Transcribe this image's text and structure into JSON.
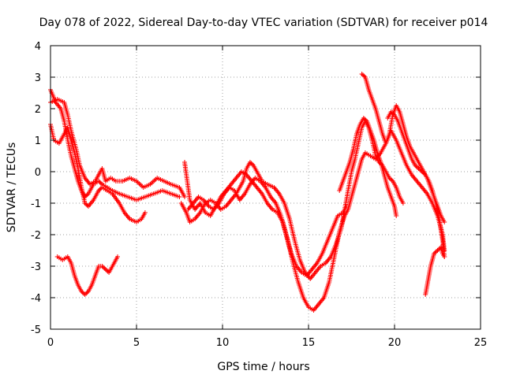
{
  "chart_data": {
    "type": "scatter",
    "title": "Day 078 of 2022, Sidereal Day-to-day VTEC variation (SDTVAR) for receiver p014",
    "xlabel": "GPS time / hours",
    "ylabel": "SDTVAR / TECUs",
    "xlim": [
      0,
      25
    ],
    "ylim": [
      -5,
      4
    ],
    "xticks": [
      "0",
      "5",
      "10",
      "15",
      "20",
      "25"
    ],
    "yticks": [
      "4",
      "3",
      "2",
      "1",
      "0",
      "-1",
      "-2",
      "-3",
      "-4",
      "-5"
    ],
    "grid": true,
    "marker": "plus",
    "color": "#ff0000",
    "series": [
      {
        "name": "track-1",
        "points": [
          [
            0.0,
            2.6
          ],
          [
            0.3,
            2.2
          ],
          [
            0.6,
            2.0
          ],
          [
            0.8,
            1.6
          ],
          [
            1.0,
            1.0
          ],
          [
            1.2,
            0.5
          ],
          [
            1.4,
            0.1
          ],
          [
            1.6,
            -0.3
          ],
          [
            1.8,
            -0.6
          ],
          [
            2.0,
            -0.8
          ],
          [
            2.2,
            -0.7
          ],
          [
            2.5,
            -0.4
          ],
          [
            2.8,
            -0.3
          ],
          [
            3.0,
            -0.4
          ],
          [
            3.3,
            -0.5
          ],
          [
            3.6,
            -0.6
          ],
          [
            4.0,
            -0.7
          ],
          [
            4.5,
            -0.8
          ],
          [
            5.0,
            -0.9
          ],
          [
            5.5,
            -0.8
          ],
          [
            6.0,
            -0.7
          ],
          [
            6.5,
            -0.6
          ],
          [
            7.0,
            -0.7
          ],
          [
            7.5,
            -0.8
          ]
        ]
      },
      {
        "name": "track-2",
        "points": [
          [
            0.0,
            1.5
          ],
          [
            0.2,
            1.0
          ],
          [
            0.5,
            0.9
          ],
          [
            0.8,
            1.2
          ],
          [
            1.0,
            1.4
          ],
          [
            1.2,
            1.0
          ],
          [
            1.4,
            0.6
          ],
          [
            1.6,
            0.1
          ],
          [
            1.8,
            -0.5
          ],
          [
            2.0,
            -1.0
          ],
          [
            2.2,
            -1.1
          ],
          [
            2.5,
            -0.9
          ],
          [
            2.8,
            -0.6
          ],
          [
            3.0,
            -0.5
          ],
          [
            3.3,
            -0.6
          ],
          [
            3.6,
            -0.7
          ],
          [
            4.0,
            -1.0
          ],
          [
            4.3,
            -1.3
          ],
          [
            4.6,
            -1.5
          ],
          [
            5.0,
            -1.6
          ],
          [
            5.3,
            -1.5
          ],
          [
            5.5,
            -1.3
          ]
        ]
      },
      {
        "name": "track-3",
        "points": [
          [
            0.0,
            2.2
          ],
          [
            0.4,
            2.3
          ],
          [
            0.8,
            2.2
          ],
          [
            1.0,
            1.8
          ],
          [
            1.2,
            1.3
          ],
          [
            1.5,
            0.7
          ],
          [
            1.7,
            0.2
          ],
          [
            2.0,
            -0.2
          ],
          [
            2.3,
            -0.4
          ],
          [
            2.6,
            -0.3
          ],
          [
            3.0,
            0.1
          ],
          [
            3.2,
            -0.3
          ],
          [
            3.5,
            -0.2
          ],
          [
            3.8,
            -0.3
          ],
          [
            4.2,
            -0.3
          ],
          [
            4.6,
            -0.2
          ],
          [
            5.0,
            -0.3
          ],
          [
            5.4,
            -0.5
          ],
          [
            5.8,
            -0.4
          ],
          [
            6.2,
            -0.2
          ],
          [
            6.6,
            -0.3
          ],
          [
            7.0,
            -0.4
          ],
          [
            7.5,
            -0.5
          ],
          [
            7.8,
            -0.8
          ]
        ]
      },
      {
        "name": "track-4",
        "points": [
          [
            0.4,
            -2.7
          ],
          [
            0.7,
            -2.8
          ],
          [
            1.0,
            -2.7
          ],
          [
            1.2,
            -2.9
          ],
          [
            1.4,
            -3.3
          ],
          [
            1.6,
            -3.6
          ],
          [
            1.8,
            -3.8
          ],
          [
            2.0,
            -3.9
          ],
          [
            2.2,
            -3.8
          ],
          [
            2.4,
            -3.6
          ],
          [
            2.6,
            -3.3
          ],
          [
            2.8,
            -3.0
          ],
          [
            3.0,
            -3.0
          ],
          [
            3.2,
            -3.1
          ],
          [
            3.4,
            -3.2
          ],
          [
            3.6,
            -3.0
          ],
          [
            3.8,
            -2.8
          ],
          [
            3.9,
            -2.7
          ]
        ]
      },
      {
        "name": "track-5",
        "points": [
          [
            7.6,
            -1.0
          ],
          [
            7.9,
            -1.3
          ],
          [
            8.1,
            -1.6
          ],
          [
            8.4,
            -1.5
          ],
          [
            8.7,
            -1.3
          ],
          [
            9.0,
            -1.0
          ],
          [
            9.3,
            -0.9
          ],
          [
            9.6,
            -1.0
          ],
          [
            9.9,
            -1.2
          ],
          [
            10.2,
            -1.1
          ],
          [
            10.5,
            -0.9
          ],
          [
            10.8,
            -0.7
          ],
          [
            11.0,
            -0.5
          ],
          [
            11.2,
            -0.3
          ],
          [
            11.4,
            0.1
          ],
          [
            11.6,
            0.3
          ],
          [
            11.8,
            0.2
          ],
          [
            12.0,
            0.0
          ],
          [
            12.3,
            -0.3
          ],
          [
            12.6,
            -0.4
          ],
          [
            13.0,
            -0.5
          ],
          [
            13.3,
            -0.7
          ],
          [
            13.6,
            -1.0
          ],
          [
            13.9,
            -1.5
          ],
          [
            14.2,
            -2.2
          ],
          [
            14.5,
            -2.8
          ],
          [
            14.8,
            -3.2
          ],
          [
            15.1,
            -3.4
          ],
          [
            15.4,
            -3.2
          ],
          [
            15.7,
            -3.0
          ],
          [
            16.0,
            -2.9
          ],
          [
            16.3,
            -2.7
          ],
          [
            16.6,
            -2.3
          ],
          [
            16.9,
            -1.8
          ],
          [
            17.1,
            -1.2
          ],
          [
            17.3,
            -0.6
          ],
          [
            17.5,
            0.0
          ],
          [
            17.7,
            0.4
          ],
          [
            17.9,
            0.9
          ],
          [
            18.1,
            1.4
          ],
          [
            18.3,
            1.6
          ],
          [
            18.5,
            1.4
          ],
          [
            18.7,
            1.0
          ],
          [
            18.9,
            0.5
          ],
          [
            19.1,
            0.3
          ],
          [
            19.3,
            0.2
          ],
          [
            19.5,
            0.0
          ],
          [
            19.7,
            -0.2
          ],
          [
            19.9,
            -0.3
          ],
          [
            20.1,
            -0.5
          ],
          [
            20.3,
            -0.8
          ],
          [
            20.5,
            -1.0
          ]
        ]
      },
      {
        "name": "track-6",
        "points": [
          [
            7.8,
            0.3
          ],
          [
            8.1,
            -0.9
          ],
          [
            8.4,
            -1.2
          ],
          [
            8.7,
            -1.0
          ],
          [
            9.0,
            -1.3
          ],
          [
            9.3,
            -1.4
          ],
          [
            9.6,
            -1.1
          ],
          [
            9.9,
            -0.8
          ],
          [
            10.2,
            -0.6
          ],
          [
            10.5,
            -0.4
          ],
          [
            10.8,
            -0.2
          ],
          [
            11.1,
            0.0
          ],
          [
            11.4,
            -0.1
          ],
          [
            11.7,
            -0.3
          ],
          [
            12.0,
            -0.5
          ],
          [
            12.3,
            -0.7
          ],
          [
            12.6,
            -1.0
          ],
          [
            12.9,
            -1.2
          ],
          [
            13.2,
            -1.3
          ],
          [
            13.5,
            -1.6
          ],
          [
            13.8,
            -2.2
          ],
          [
            14.1,
            -2.9
          ],
          [
            14.4,
            -3.5
          ],
          [
            14.7,
            -4.0
          ],
          [
            15.0,
            -4.3
          ],
          [
            15.3,
            -4.4
          ],
          [
            15.6,
            -4.2
          ],
          [
            15.9,
            -4.0
          ],
          [
            16.2,
            -3.5
          ],
          [
            16.5,
            -2.7
          ],
          [
            16.8,
            -1.9
          ],
          [
            17.1,
            -1.4
          ],
          [
            17.3,
            -1.2
          ],
          [
            17.5,
            -0.8
          ],
          [
            17.7,
            -0.4
          ],
          [
            17.9,
            0.0
          ],
          [
            18.1,
            0.4
          ],
          [
            18.3,
            0.6
          ],
          [
            18.6,
            0.5
          ],
          [
            18.9,
            0.4
          ],
          [
            19.2,
            0.6
          ],
          [
            19.5,
            0.9
          ],
          [
            19.8,
            1.3
          ],
          [
            20.1,
            1.0
          ],
          [
            20.4,
            0.6
          ],
          [
            20.7,
            0.2
          ],
          [
            21.0,
            -0.1
          ],
          [
            21.3,
            -0.3
          ],
          [
            21.6,
            -0.5
          ],
          [
            21.9,
            -0.7
          ],
          [
            22.2,
            -1.0
          ],
          [
            22.5,
            -1.4
          ],
          [
            22.8,
            -2.0
          ],
          [
            22.9,
            -2.5
          ]
        ]
      },
      {
        "name": "track-7",
        "points": [
          [
            8.0,
            -1.2
          ],
          [
            8.3,
            -1.0
          ],
          [
            8.6,
            -0.8
          ],
          [
            8.9,
            -0.9
          ],
          [
            9.2,
            -1.1
          ],
          [
            9.5,
            -1.2
          ],
          [
            9.8,
            -1.0
          ],
          [
            10.1,
            -0.7
          ],
          [
            10.4,
            -0.5
          ],
          [
            10.7,
            -0.6
          ],
          [
            11.0,
            -0.9
          ],
          [
            11.3,
            -0.7
          ],
          [
            11.6,
            -0.4
          ],
          [
            11.9,
            -0.2
          ],
          [
            12.2,
            -0.3
          ],
          [
            12.5,
            -0.5
          ],
          [
            12.8,
            -0.8
          ],
          [
            13.1,
            -1.0
          ],
          [
            13.4,
            -1.4
          ],
          [
            13.7,
            -2.0
          ],
          [
            14.0,
            -2.6
          ],
          [
            14.3,
            -3.0
          ],
          [
            14.6,
            -3.2
          ],
          [
            14.9,
            -3.3
          ],
          [
            15.2,
            -3.1
          ],
          [
            15.5,
            -2.9
          ],
          [
            15.8,
            -2.6
          ],
          [
            16.1,
            -2.2
          ],
          [
            16.4,
            -1.8
          ],
          [
            16.7,
            -1.4
          ],
          [
            17.0,
            -1.3
          ],
          [
            17.2,
            -1.1
          ]
        ]
      },
      {
        "name": "track-8",
        "points": [
          [
            18.1,
            3.1
          ],
          [
            18.3,
            3.0
          ],
          [
            18.5,
            2.6
          ],
          [
            18.7,
            2.3
          ],
          [
            18.9,
            2.0
          ],
          [
            19.1,
            1.6
          ],
          [
            19.3,
            1.2
          ],
          [
            19.5,
            0.9
          ],
          [
            19.7,
            1.2
          ],
          [
            19.9,
            1.8
          ],
          [
            20.1,
            2.1
          ],
          [
            20.3,
            1.9
          ],
          [
            20.5,
            1.5
          ],
          [
            20.7,
            1.1
          ],
          [
            20.9,
            0.8
          ],
          [
            21.1,
            0.6
          ],
          [
            21.3,
            0.4
          ],
          [
            21.5,
            0.2
          ],
          [
            21.7,
            0.0
          ],
          [
            21.9,
            -0.2
          ],
          [
            22.1,
            -0.5
          ],
          [
            22.3,
            -0.8
          ],
          [
            22.5,
            -1.1
          ],
          [
            22.7,
            -1.4
          ],
          [
            22.9,
            -1.6
          ]
        ]
      },
      {
        "name": "track-9",
        "points": [
          [
            16.8,
            -0.6
          ],
          [
            17.0,
            -0.3
          ],
          [
            17.2,
            0.0
          ],
          [
            17.4,
            0.3
          ],
          [
            17.6,
            0.7
          ],
          [
            17.8,
            1.2
          ],
          [
            18.0,
            1.5
          ],
          [
            18.2,
            1.7
          ],
          [
            18.4,
            1.6
          ],
          [
            18.6,
            1.3
          ],
          [
            18.8,
            1.0
          ],
          [
            19.0,
            0.6
          ],
          [
            19.2,
            0.3
          ],
          [
            19.4,
            -0.1
          ],
          [
            19.6,
            -0.5
          ],
          [
            19.8,
            -0.8
          ],
          [
            20.0,
            -1.1
          ],
          [
            20.1,
            -1.4
          ]
        ]
      },
      {
        "name": "track-10",
        "points": [
          [
            19.6,
            1.7
          ],
          [
            19.8,
            1.9
          ],
          [
            20.0,
            1.8
          ],
          [
            20.2,
            1.6
          ],
          [
            20.4,
            1.3
          ],
          [
            20.6,
            1.0
          ],
          [
            20.8,
            0.7
          ],
          [
            21.0,
            0.4
          ],
          [
            21.2,
            0.2
          ],
          [
            21.4,
            0.1
          ],
          [
            21.6,
            0.0
          ],
          [
            21.8,
            -0.1
          ],
          [
            22.0,
            -0.3
          ],
          [
            22.2,
            -0.6
          ],
          [
            22.4,
            -1.0
          ],
          [
            22.6,
            -1.5
          ],
          [
            22.8,
            -2.2
          ],
          [
            22.9,
            -2.7
          ]
        ]
      },
      {
        "name": "track-11",
        "points": [
          [
            21.8,
            -3.9
          ],
          [
            21.9,
            -3.6
          ],
          [
            22.0,
            -3.3
          ],
          [
            22.1,
            -3.0
          ],
          [
            22.2,
            -2.8
          ],
          [
            22.3,
            -2.6
          ],
          [
            22.5,
            -2.5
          ],
          [
            22.7,
            -2.4
          ],
          [
            22.8,
            -2.6
          ],
          [
            22.9,
            -2.7
          ]
        ]
      }
    ]
  }
}
